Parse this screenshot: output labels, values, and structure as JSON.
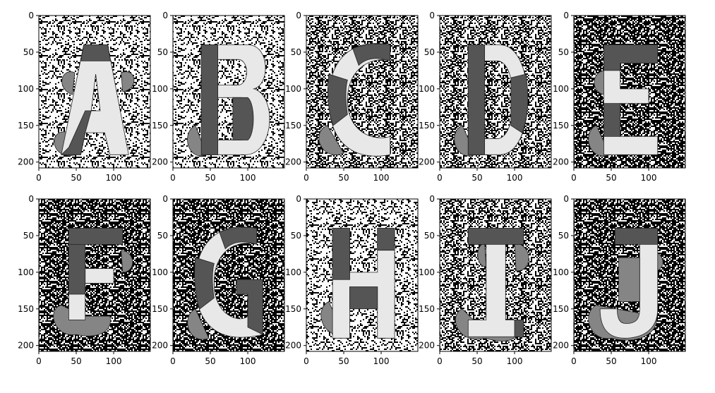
{
  "figure": {
    "rows": 2,
    "cols": 5
  },
  "chart_data": [
    {
      "type": "heatmap",
      "glyph": "A",
      "xlim": [
        0,
        149
      ],
      "ylim": [
        208,
        0
      ],
      "xticks": [
        0,
        50,
        100
      ],
      "yticks": [
        0,
        50,
        100,
        150,
        200
      ],
      "background": "noise-light"
    },
    {
      "type": "heatmap",
      "glyph": "B",
      "xlim": [
        0,
        149
      ],
      "ylim": [
        208,
        0
      ],
      "xticks": [
        0,
        50,
        100
      ],
      "yticks": [
        0,
        50,
        100,
        150,
        200
      ],
      "background": "noise-light"
    },
    {
      "type": "heatmap",
      "glyph": "C",
      "xlim": [
        0,
        149
      ],
      "ylim": [
        208,
        0
      ],
      "xticks": [
        0,
        50,
        100
      ],
      "yticks": [
        0,
        50,
        100,
        150,
        200
      ],
      "background": "noise-mixed"
    },
    {
      "type": "heatmap",
      "glyph": "D",
      "xlim": [
        0,
        149
      ],
      "ylim": [
        208,
        0
      ],
      "xticks": [
        0,
        50,
        100
      ],
      "yticks": [
        0,
        50,
        100,
        150,
        200
      ],
      "background": "noise-mixed"
    },
    {
      "type": "heatmap",
      "glyph": "E",
      "xlim": [
        0,
        149
      ],
      "ylim": [
        208,
        0
      ],
      "xticks": [
        0,
        50,
        100
      ],
      "yticks": [
        0,
        50,
        100,
        150,
        200
      ],
      "background": "noise-dark"
    },
    {
      "type": "heatmap",
      "glyph": "F",
      "xlim": [
        0,
        149
      ],
      "ylim": [
        208,
        0
      ],
      "xticks": [
        0,
        50,
        100
      ],
      "yticks": [
        0,
        50,
        100,
        150,
        200
      ],
      "background": "noise-dark"
    },
    {
      "type": "heatmap",
      "glyph": "G",
      "xlim": [
        0,
        149
      ],
      "ylim": [
        208,
        0
      ],
      "xticks": [
        0,
        50,
        100
      ],
      "yticks": [
        0,
        50,
        100,
        150,
        200
      ],
      "background": "noise-dark"
    },
    {
      "type": "heatmap",
      "glyph": "H",
      "xlim": [
        0,
        149
      ],
      "ylim": [
        208,
        0
      ],
      "xticks": [
        0,
        50,
        100
      ],
      "yticks": [
        0,
        50,
        100,
        150,
        200
      ],
      "background": "noise-light"
    },
    {
      "type": "heatmap",
      "glyph": "I",
      "xlim": [
        0,
        149
      ],
      "ylim": [
        208,
        0
      ],
      "xticks": [
        0,
        50,
        100
      ],
      "yticks": [
        0,
        50,
        100,
        150,
        200
      ],
      "background": "noise-mixed"
    },
    {
      "type": "heatmap",
      "glyph": "J",
      "xlim": [
        0,
        149
      ],
      "ylim": [
        208,
        0
      ],
      "xticks": [
        0,
        50,
        100
      ],
      "yticks": [
        0,
        50,
        100,
        150,
        200
      ],
      "background": "noise-dark"
    }
  ],
  "colors": {
    "ink_dark": "#555555",
    "ink_mid": "#858585",
    "ink_light": "#e8e8e8",
    "outline": "#222222",
    "axis": "#000000"
  }
}
